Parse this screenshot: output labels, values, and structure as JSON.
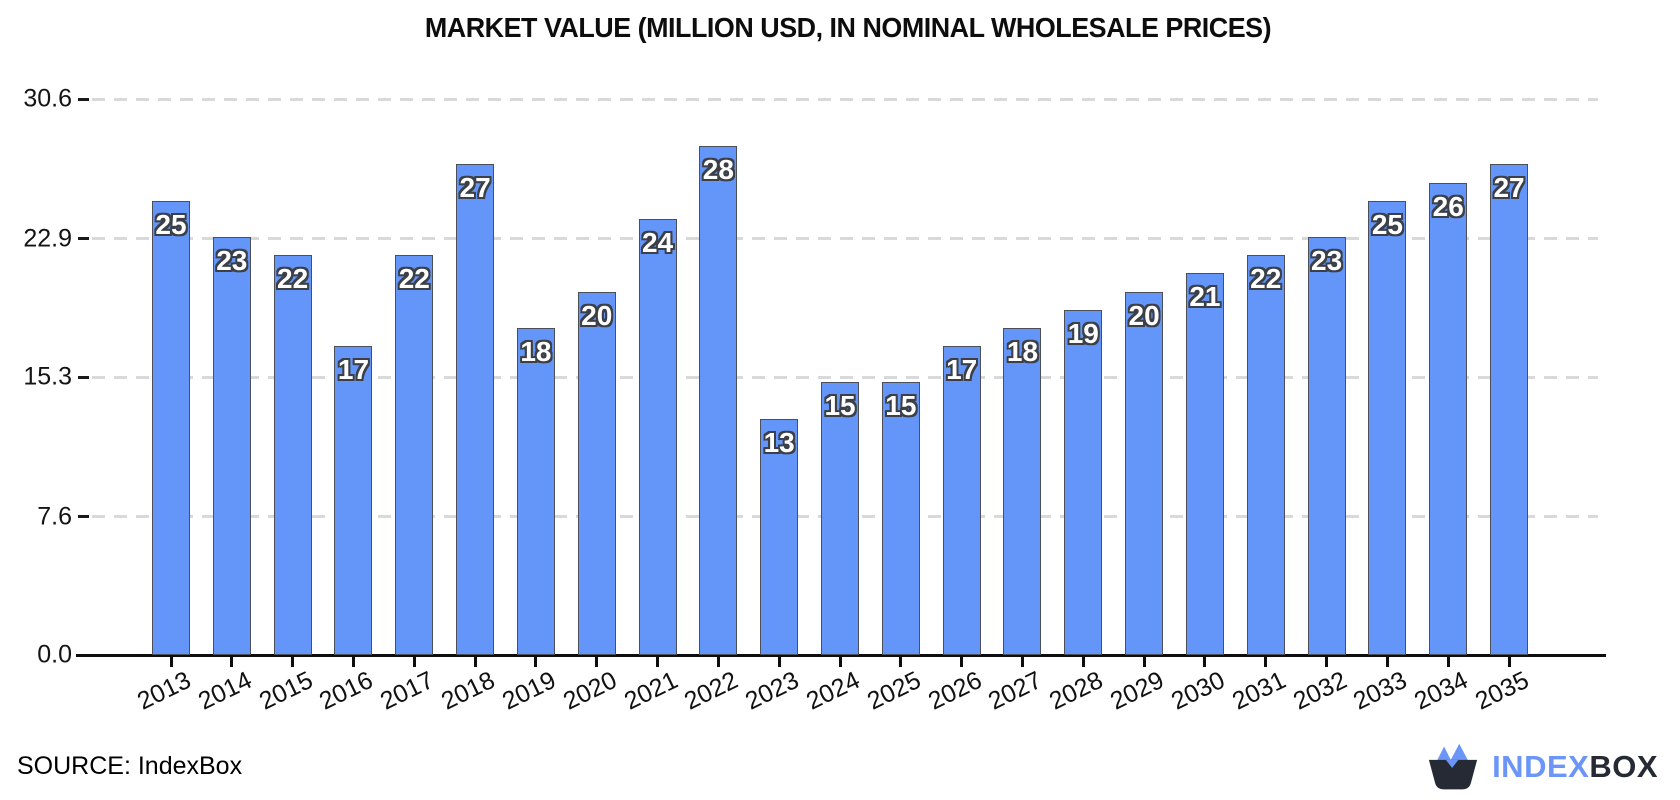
{
  "chart_data": {
    "type": "bar",
    "title": "MARKET VALUE (MILLION USD, IN NOMINAL WHOLESALE PRICES)",
    "categories": [
      "2013",
      "2014",
      "2015",
      "2016",
      "2017",
      "2018",
      "2019",
      "2020",
      "2021",
      "2022",
      "2023",
      "2024",
      "2025",
      "2026",
      "2027",
      "2028",
      "2029",
      "2030",
      "2031",
      "2032",
      "2033",
      "2034",
      "2035"
    ],
    "values": [
      25,
      23,
      22,
      17,
      22,
      27,
      18,
      20,
      24,
      28,
      13,
      15,
      15,
      17,
      18,
      19,
      20,
      21,
      22,
      23,
      25,
      26,
      27
    ],
    "xlabel": "",
    "ylabel": "",
    "ylim": [
      0,
      30.6
    ],
    "yticks": [
      0,
      7.6,
      15.3,
      22.9,
      30.6
    ],
    "ytick_labels": [
      "0.0",
      "7.6",
      "15.3",
      "22.9",
      "30.6"
    ],
    "grid": "horizontal-dashed",
    "legend": "none",
    "bar_value_labels_shown": true,
    "colors": {
      "bar_fill": "#6496fa",
      "bar_edge": "#4b4f57",
      "gridline": "#d9d9d9",
      "axis": "#0d0d0d",
      "value_label_fill": "#ffffff",
      "value_label_outline": "#3c4046"
    }
  },
  "footer": {
    "source_label": "SOURCE: IndexBox"
  },
  "logo": {
    "index_text": "INDEX",
    "box_text": "BOX",
    "blue": "#6b96f8",
    "dark": "#262a35"
  }
}
